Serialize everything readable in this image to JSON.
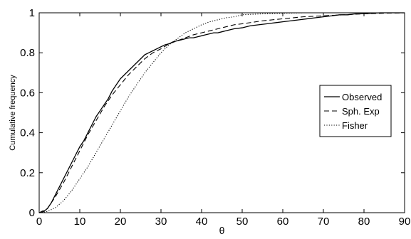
{
  "chart_data": {
    "type": "line",
    "xlabel": "θ",
    "ylabel": "Cumulative frequency",
    "xlim": [
      0,
      90
    ],
    "ylim": [
      0,
      1
    ],
    "xticks": [
      0,
      10,
      20,
      30,
      40,
      50,
      60,
      70,
      80,
      90
    ],
    "yticks": [
      0,
      0.2,
      0.4,
      0.6,
      0.8,
      1
    ],
    "xtick_labels": [
      "0",
      "10",
      "20",
      "30",
      "40",
      "50",
      "60",
      "70",
      "80",
      "90"
    ],
    "ytick_labels": [
      "0",
      "0.2",
      "0.4",
      "0.6",
      "0.8",
      "1"
    ],
    "grid": false,
    "legend_position": "center-right",
    "series": [
      {
        "name": "Observed",
        "style": "solid",
        "x": [
          0,
          1,
          2,
          3,
          4,
          5,
          6,
          7,
          8,
          9,
          10,
          11,
          12,
          13,
          14,
          15,
          16,
          17,
          18,
          19,
          20,
          21,
          22,
          23,
          24,
          25,
          26,
          27,
          28,
          29,
          30,
          31,
          32,
          33,
          34,
          35,
          36,
          37,
          38,
          39,
          40,
          41,
          42,
          43,
          44,
          45,
          46,
          47,
          48,
          50,
          52,
          54,
          56,
          58,
          60,
          62,
          64,
          66,
          68,
          70,
          72,
          74,
          76,
          78,
          80,
          82,
          84,
          86,
          90
        ],
        "y": [
          0,
          0.005,
          0.02,
          0.05,
          0.09,
          0.13,
          0.17,
          0.21,
          0.25,
          0.29,
          0.33,
          0.36,
          0.4,
          0.44,
          0.48,
          0.51,
          0.54,
          0.57,
          0.61,
          0.64,
          0.67,
          0.69,
          0.71,
          0.73,
          0.75,
          0.77,
          0.79,
          0.8,
          0.81,
          0.82,
          0.83,
          0.84,
          0.845,
          0.855,
          0.86,
          0.865,
          0.87,
          0.875,
          0.875,
          0.88,
          0.885,
          0.89,
          0.895,
          0.9,
          0.9,
          0.905,
          0.91,
          0.915,
          0.92,
          0.925,
          0.935,
          0.94,
          0.945,
          0.95,
          0.955,
          0.96,
          0.965,
          0.97,
          0.975,
          0.98,
          0.985,
          0.99,
          0.99,
          0.995,
          0.995,
          0.998,
          1.0,
          1.0,
          1.0
        ]
      },
      {
        "name": "Sph. Exp",
        "style": "dashed",
        "x": [
          0,
          2,
          4,
          6,
          8,
          10,
          12,
          14,
          16,
          18,
          20,
          22,
          24,
          26,
          28,
          30,
          32,
          34,
          36,
          38,
          40,
          42,
          44,
          46,
          48,
          50,
          55,
          60,
          65,
          70,
          75,
          80,
          85,
          90
        ],
        "y": [
          0,
          0.02,
          0.08,
          0.15,
          0.23,
          0.31,
          0.39,
          0.46,
          0.53,
          0.59,
          0.64,
          0.69,
          0.73,
          0.77,
          0.8,
          0.82,
          0.845,
          0.86,
          0.875,
          0.89,
          0.9,
          0.91,
          0.92,
          0.93,
          0.94,
          0.945,
          0.96,
          0.97,
          0.98,
          0.985,
          0.99,
          0.995,
          0.998,
          1.0
        ]
      },
      {
        "name": "Fisher",
        "style": "dotted",
        "x": [
          0,
          2,
          4,
          6,
          8,
          10,
          12,
          14,
          16,
          18,
          20,
          22,
          24,
          26,
          28,
          30,
          32,
          34,
          36,
          38,
          40,
          42,
          44,
          46,
          48,
          50,
          55,
          60,
          65,
          70,
          75,
          80,
          85,
          90
        ],
        "y": [
          0,
          0.006,
          0.025,
          0.06,
          0.11,
          0.17,
          0.23,
          0.3,
          0.37,
          0.44,
          0.51,
          0.58,
          0.64,
          0.7,
          0.75,
          0.8,
          0.84,
          0.87,
          0.9,
          0.92,
          0.94,
          0.955,
          0.965,
          0.975,
          0.98,
          0.99,
          0.995,
          0.998,
          1.0,
          1.0,
          1.0,
          1.0,
          1.0,
          1.0
        ]
      }
    ]
  }
}
